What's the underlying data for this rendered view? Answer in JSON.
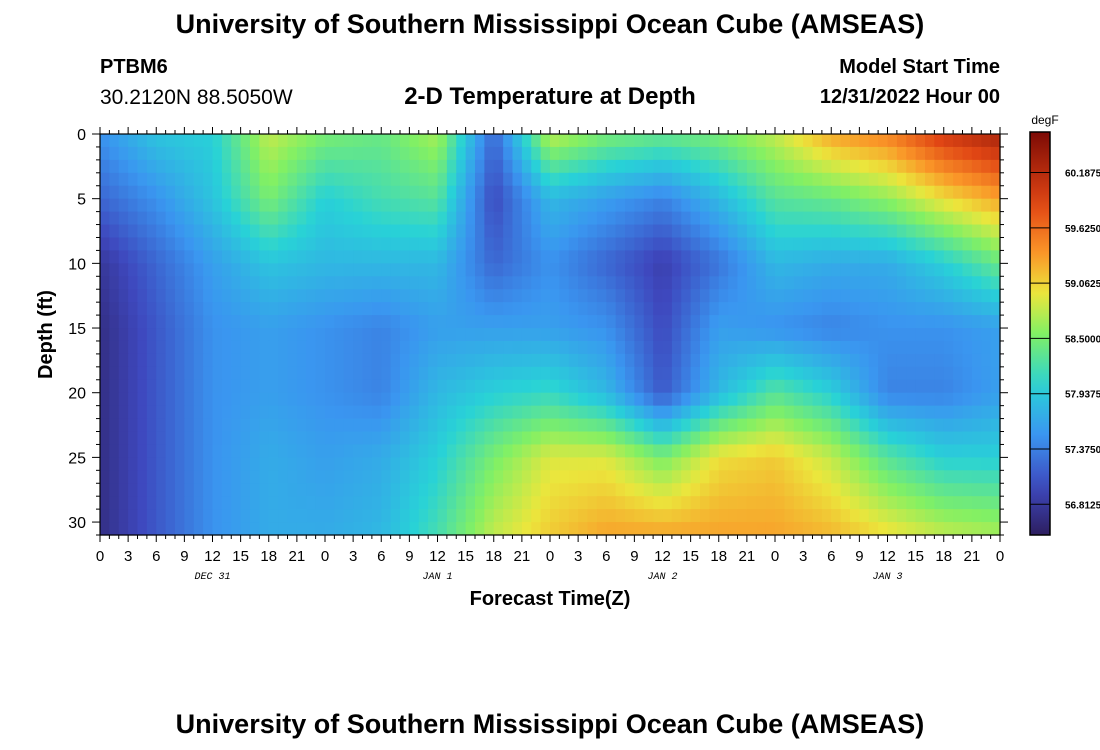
{
  "header": {
    "title": "University of Southern Mississippi Ocean Cube (AMSEAS)",
    "station_id": "PTBM6",
    "coordinates": "30.2120N  88.5050W",
    "subtitle": "2-D Temperature at Depth",
    "model_start_label": "Model Start Time",
    "model_start_value": "12/31/2022 Hour 00"
  },
  "footer": {
    "title": "University of Southern Mississippi Ocean Cube (AMSEAS)"
  },
  "chart_data": {
    "type": "heatmap",
    "title": "2-D Temperature at Depth",
    "xlabel": "Forecast Time(Z)",
    "ylabel": "Depth (ft)",
    "x_range_hours": [
      0,
      96
    ],
    "x_tick_step_hours": 3,
    "x_tick_labels": [
      "0",
      "3",
      "6",
      "9",
      "12",
      "15",
      "18",
      "21",
      "0",
      "3",
      "6",
      "9",
      "12",
      "15",
      "18",
      "21",
      "0",
      "3",
      "6",
      "9",
      "12",
      "15",
      "18",
      "21",
      "0",
      "3",
      "6",
      "9",
      "12",
      "15",
      "18",
      "21",
      "0"
    ],
    "date_labels": [
      {
        "label": "DEC 31",
        "hour": 12
      },
      {
        "label": "JAN 1",
        "hour": 36
      },
      {
        "label": "JAN 2",
        "hour": 60
      },
      {
        "label": "JAN 3",
        "hour": 84
      }
    ],
    "y_range_ft": [
      0,
      31
    ],
    "y_ticks": [
      0,
      5,
      10,
      15,
      20,
      25,
      30
    ],
    "y_reversed": true,
    "colorbar": {
      "unit": "degF",
      "range": [
        56.5,
        60.6
      ],
      "tick_values": [
        56.8125,
        57.375,
        57.9375,
        58.5,
        59.0625,
        59.625,
        60.1875
      ],
      "tick_labels": [
        "56.8125",
        "57.3750",
        "57.9375",
        "58.5000",
        "59.0625",
        "59.6250",
        "60.1875"
      ]
    },
    "grid": {
      "hours": [
        0,
        6,
        12,
        18,
        24,
        30,
        36,
        42,
        48,
        54,
        60,
        66,
        72,
        78,
        84,
        90,
        96
      ],
      "depths_ft": [
        0,
        5,
        10,
        15,
        20,
        25,
        31
      ],
      "temps_degF": [
        [
          57.5,
          57.9,
          58.0,
          58.8,
          58.5,
          58.4,
          58.7,
          57.2,
          58.8,
          58.5,
          58.4,
          58.5,
          58.8,
          59.3,
          59.5,
          60.0,
          60.3
        ],
        [
          57.2,
          57.5,
          57.9,
          58.5,
          58.0,
          58.2,
          58.3,
          57.0,
          57.8,
          57.6,
          57.4,
          57.8,
          58.3,
          58.4,
          58.6,
          59.0,
          59.3
        ],
        [
          56.8,
          57.2,
          57.6,
          57.9,
          57.8,
          57.8,
          57.8,
          57.2,
          57.5,
          57.2,
          56.9,
          57.3,
          57.8,
          57.7,
          57.7,
          58.0,
          58.4
        ],
        [
          56.7,
          57.1,
          57.5,
          57.6,
          57.5,
          57.4,
          57.6,
          57.6,
          57.6,
          57.5,
          57.0,
          57.6,
          57.5,
          57.4,
          57.5,
          57.5,
          57.6
        ],
        [
          56.7,
          57.1,
          57.5,
          57.6,
          57.5,
          57.4,
          57.8,
          58.0,
          58.1,
          57.8,
          57.1,
          57.8,
          58.3,
          58.0,
          57.4,
          57.4,
          57.6
        ],
        [
          56.7,
          57.1,
          57.5,
          57.7,
          57.6,
          57.7,
          58.0,
          58.5,
          58.9,
          58.9,
          58.5,
          59.0,
          59.1,
          58.8,
          58.3,
          58.0,
          58.0
        ],
        [
          56.7,
          57.1,
          57.5,
          57.7,
          57.7,
          57.8,
          58.2,
          58.8,
          59.1,
          59.3,
          59.3,
          59.3,
          59.3,
          59.2,
          59.0,
          58.8,
          58.7
        ]
      ]
    }
  }
}
